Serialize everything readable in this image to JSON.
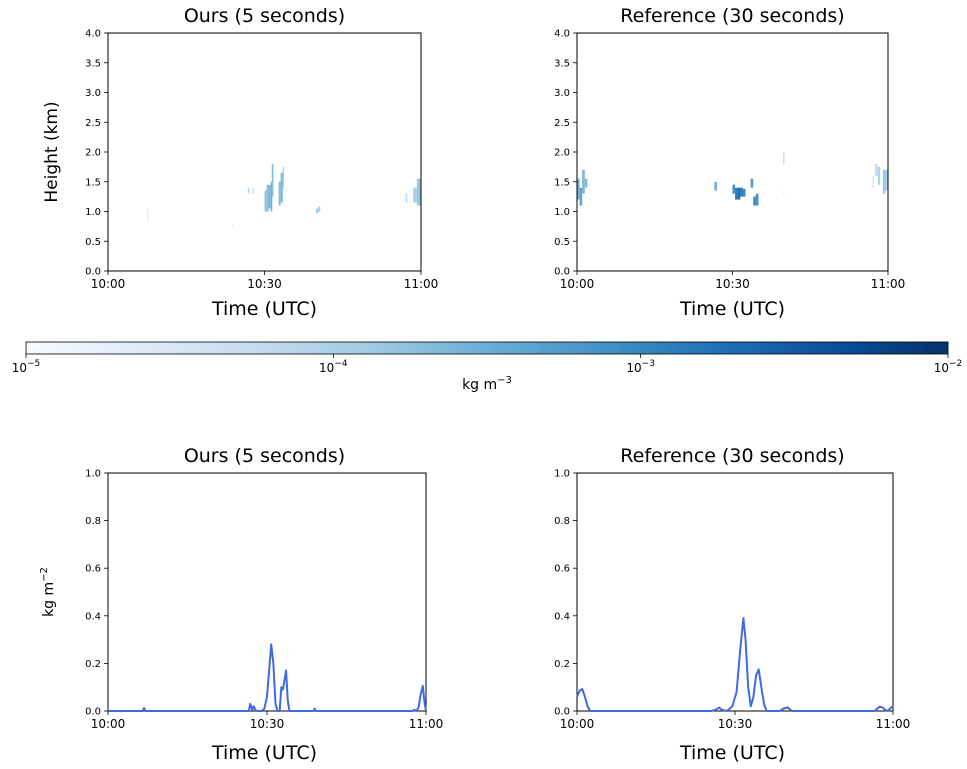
{
  "figure": {
    "colorbar": {
      "label_base": "kg m",
      "label_exp": "−3",
      "ticks": [
        {
          "base": "10",
          "exp": "−5"
        },
        {
          "base": "10",
          "exp": "−4"
        },
        {
          "base": "10",
          "exp": "−3"
        },
        {
          "base": "10",
          "exp": "−2"
        }
      ],
      "colormap_start": "#f7fbff",
      "colormap_end": "#08306b"
    },
    "line_color": "#4169e1"
  },
  "chart_data": [
    {
      "type": "heatmap",
      "title": "Ours (5 seconds)",
      "xlabel": "Time (UTC)",
      "ylabel": "Height (km)",
      "xticks": [
        "10:00",
        "10:30",
        "11:00"
      ],
      "xlim": [
        0,
        60
      ],
      "yticks": [
        "0.0",
        "0.5",
        "1.0",
        "1.5",
        "2.0",
        "2.5",
        "3.0",
        "3.5",
        "4.0"
      ],
      "ylim": [
        0,
        4
      ],
      "colorscale": "log",
      "zlim": [
        1e-05,
        0.01
      ],
      "cells": [
        [
          7.5,
          7.7,
          0.85,
          1.05,
          3e-05
        ],
        [
          23.8,
          24.0,
          0.75,
          0.8,
          2e-05
        ],
        [
          26.8,
          27.1,
          1.3,
          1.4,
          8e-05
        ],
        [
          27.7,
          27.9,
          1.3,
          1.4,
          0.0001
        ],
        [
          30.0,
          30.4,
          1.0,
          1.35,
          0.00015
        ],
        [
          30.4,
          30.8,
          1.0,
          1.45,
          0.0002
        ],
        [
          30.8,
          31.2,
          1.05,
          1.45,
          0.00025
        ],
        [
          31.2,
          31.5,
          1.0,
          1.5,
          0.0003
        ],
        [
          31.4,
          31.7,
          1.25,
          1.8,
          0.00022
        ],
        [
          32.7,
          33.1,
          1.1,
          1.5,
          0.0002
        ],
        [
          33.1,
          33.5,
          1.15,
          1.65,
          0.00025
        ],
        [
          33.5,
          33.7,
          1.4,
          1.75,
          0.00015
        ],
        [
          39.9,
          40.3,
          0.97,
          1.05,
          0.00012
        ],
        [
          40.3,
          40.7,
          1.0,
          1.08,
          0.0001
        ],
        [
          57.0,
          57.4,
          1.15,
          1.3,
          5e-05
        ],
        [
          58.5,
          59.2,
          1.15,
          1.4,
          0.0001
        ],
        [
          59.2,
          60.0,
          1.1,
          1.55,
          0.00014
        ]
      ]
    },
    {
      "type": "heatmap",
      "title": "Reference (30 seconds)",
      "xlabel": "Time (UTC)",
      "ylabel": "",
      "xticks": [
        "10:00",
        "10:30",
        "11:00"
      ],
      "xlim": [
        0,
        60
      ],
      "yticks": [
        "0.0",
        "0.5",
        "1.0",
        "1.5",
        "2.0",
        "2.5",
        "3.0",
        "3.5",
        "4.0"
      ],
      "ylim": [
        0,
        4
      ],
      "colorscale": "log",
      "zlim": [
        1e-05,
        0.01
      ],
      "cells": [
        [
          0.0,
          0.5,
          1.2,
          1.55,
          0.0003
        ],
        [
          0.5,
          1.0,
          1.1,
          1.4,
          0.0004
        ],
        [
          1.0,
          1.5,
          1.3,
          1.7,
          0.00025
        ],
        [
          1.5,
          2.0,
          1.4,
          1.55,
          0.0002
        ],
        [
          26.5,
          27.0,
          1.35,
          1.5,
          0.0003
        ],
        [
          30.0,
          30.5,
          1.3,
          1.45,
          0.0008
        ],
        [
          30.5,
          31.0,
          1.2,
          1.4,
          0.0015
        ],
        [
          31.0,
          31.5,
          1.2,
          1.4,
          0.002
        ],
        [
          31.5,
          32.0,
          1.25,
          1.4,
          0.0015
        ],
        [
          32.0,
          32.5,
          1.25,
          1.38,
          0.001
        ],
        [
          33.5,
          34.0,
          1.4,
          1.55,
          0.0006
        ],
        [
          34.0,
          34.5,
          1.1,
          1.25,
          0.001
        ],
        [
          34.5,
          35.0,
          1.1,
          1.3,
          0.0008
        ],
        [
          39.8,
          40.0,
          1.8,
          2.0,
          8e-05
        ],
        [
          39.8,
          40.0,
          1.28,
          1.35,
          2e-05
        ],
        [
          57.0,
          57.3,
          1.4,
          1.6,
          3e-05
        ],
        [
          57.5,
          58.0,
          1.6,
          1.8,
          5e-05
        ],
        [
          58.0,
          58.5,
          1.45,
          1.75,
          8e-05
        ],
        [
          59.0,
          59.5,
          1.3,
          1.7,
          0.00015
        ],
        [
          59.5,
          60.0,
          1.35,
          1.7,
          0.0001
        ]
      ]
    },
    {
      "type": "line",
      "title": "Ours (5 seconds)",
      "xlabel": "Time (UTC)",
      "ylabel_base": "kg m",
      "ylabel_exp": "−2",
      "xticks": [
        "10:00",
        "10:30",
        "11:00"
      ],
      "xlim": [
        0,
        60
      ],
      "yticks": [
        "0.0",
        "0.2",
        "0.4",
        "0.6",
        "0.8",
        "1.0"
      ],
      "ylim": [
        0,
        1
      ],
      "series": [
        {
          "x": [
            0,
            6.5,
            6.8,
            7.1,
            26.6,
            26.8,
            27.0,
            27.2,
            27.5,
            27.8,
            28.1,
            28.5,
            29.0,
            29.5,
            30.0,
            30.4,
            30.8,
            31.2,
            31.6,
            32.0,
            32.4,
            32.7,
            33.0,
            33.3,
            33.6,
            33.9,
            34.2,
            34.6,
            35.0,
            38.8,
            39.0,
            39.2,
            40.5,
            40.8,
            57.5,
            57.8,
            58.2,
            58.6,
            59.0,
            59.4,
            59.7,
            60
          ],
          "y": [
            0,
            0,
            0.012,
            0,
            0,
            0.03,
            0.02,
            0.005,
            0.02,
            0.005,
            0,
            0,
            0,
            0.01,
            0.06,
            0.17,
            0.28,
            0.2,
            0.03,
            0,
            0,
            0.1,
            0.09,
            0.13,
            0.17,
            0.05,
            0,
            0,
            0,
            0,
            0.01,
            0,
            0,
            0,
            0,
            0.005,
            0,
            0.015,
            0.07,
            0.105,
            0.04,
            0
          ]
        }
      ]
    },
    {
      "type": "line",
      "title": "Reference (30 seconds)",
      "xlabel": "Time (UTC)",
      "ylabel_base": "",
      "ylabel_exp": "",
      "xticks": [
        "10:00",
        "10:30",
        "11:00"
      ],
      "xlim": [
        0,
        60
      ],
      "yticks": [
        "0.0",
        "0.2",
        "0.4",
        "0.6",
        "0.8",
        "1.0"
      ],
      "ylim": [
        0,
        1
      ],
      "series": [
        {
          "x": [
            0,
            0.5,
            1.0,
            1.5,
            2.0,
            2.5,
            3.0,
            25.5,
            26.3,
            27.0,
            27.5,
            28.5,
            29.5,
            30.3,
            31.0,
            31.6,
            32.0,
            32.5,
            33.0,
            33.5,
            34.0,
            34.5,
            35.0,
            35.5,
            36.0,
            38.5,
            39.2,
            40.0,
            40.8,
            56.5,
            57.0,
            57.5,
            58.0,
            58.5,
            59.0,
            59.5,
            60
          ],
          "y": [
            0.06,
            0.085,
            0.092,
            0.06,
            0.02,
            0,
            0,
            0,
            0.005,
            0.015,
            0.005,
            0,
            0.02,
            0.08,
            0.26,
            0.39,
            0.3,
            0.1,
            0.02,
            0.06,
            0.15,
            0.175,
            0.1,
            0.03,
            0,
            0,
            0.01,
            0.015,
            0,
            0,
            0.01,
            0.018,
            0.015,
            0.005,
            0,
            0.012,
            0.02
          ]
        }
      ]
    }
  ]
}
